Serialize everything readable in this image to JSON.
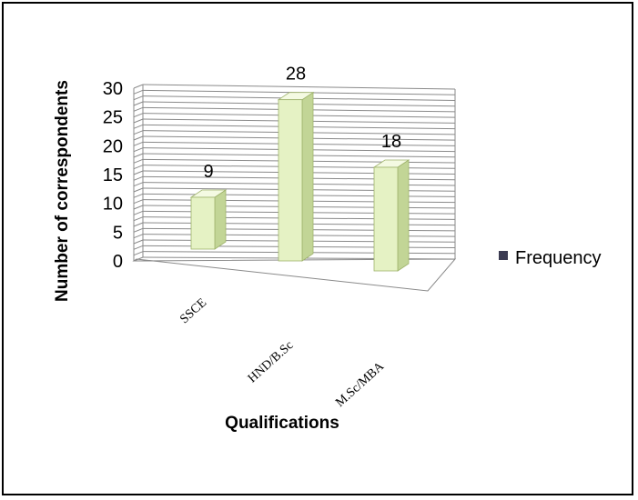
{
  "chart_data": {
    "type": "bar",
    "categories": [
      "SSCE",
      "HND/B.Sc",
      "M.Sc/MBA"
    ],
    "series": [
      {
        "name": "Frequency",
        "values": [
          9,
          28,
          18
        ]
      }
    ],
    "title": "",
    "xlabel": "Qualifications",
    "ylabel": "Number of correspondents",
    "ylim": [
      0,
      30
    ],
    "yticks": [
      0,
      5,
      10,
      15,
      20,
      25,
      30
    ],
    "grid": true,
    "legend_position": "right",
    "three_d": true,
    "colors": {
      "bar_front": "#e5f2c4",
      "bar_side": "#c2d596",
      "bar_top": "#f4fae2",
      "bar_edge": "#9fb36c",
      "grid": "#8a8a8a",
      "legend_marker": "#3b3b52"
    }
  }
}
